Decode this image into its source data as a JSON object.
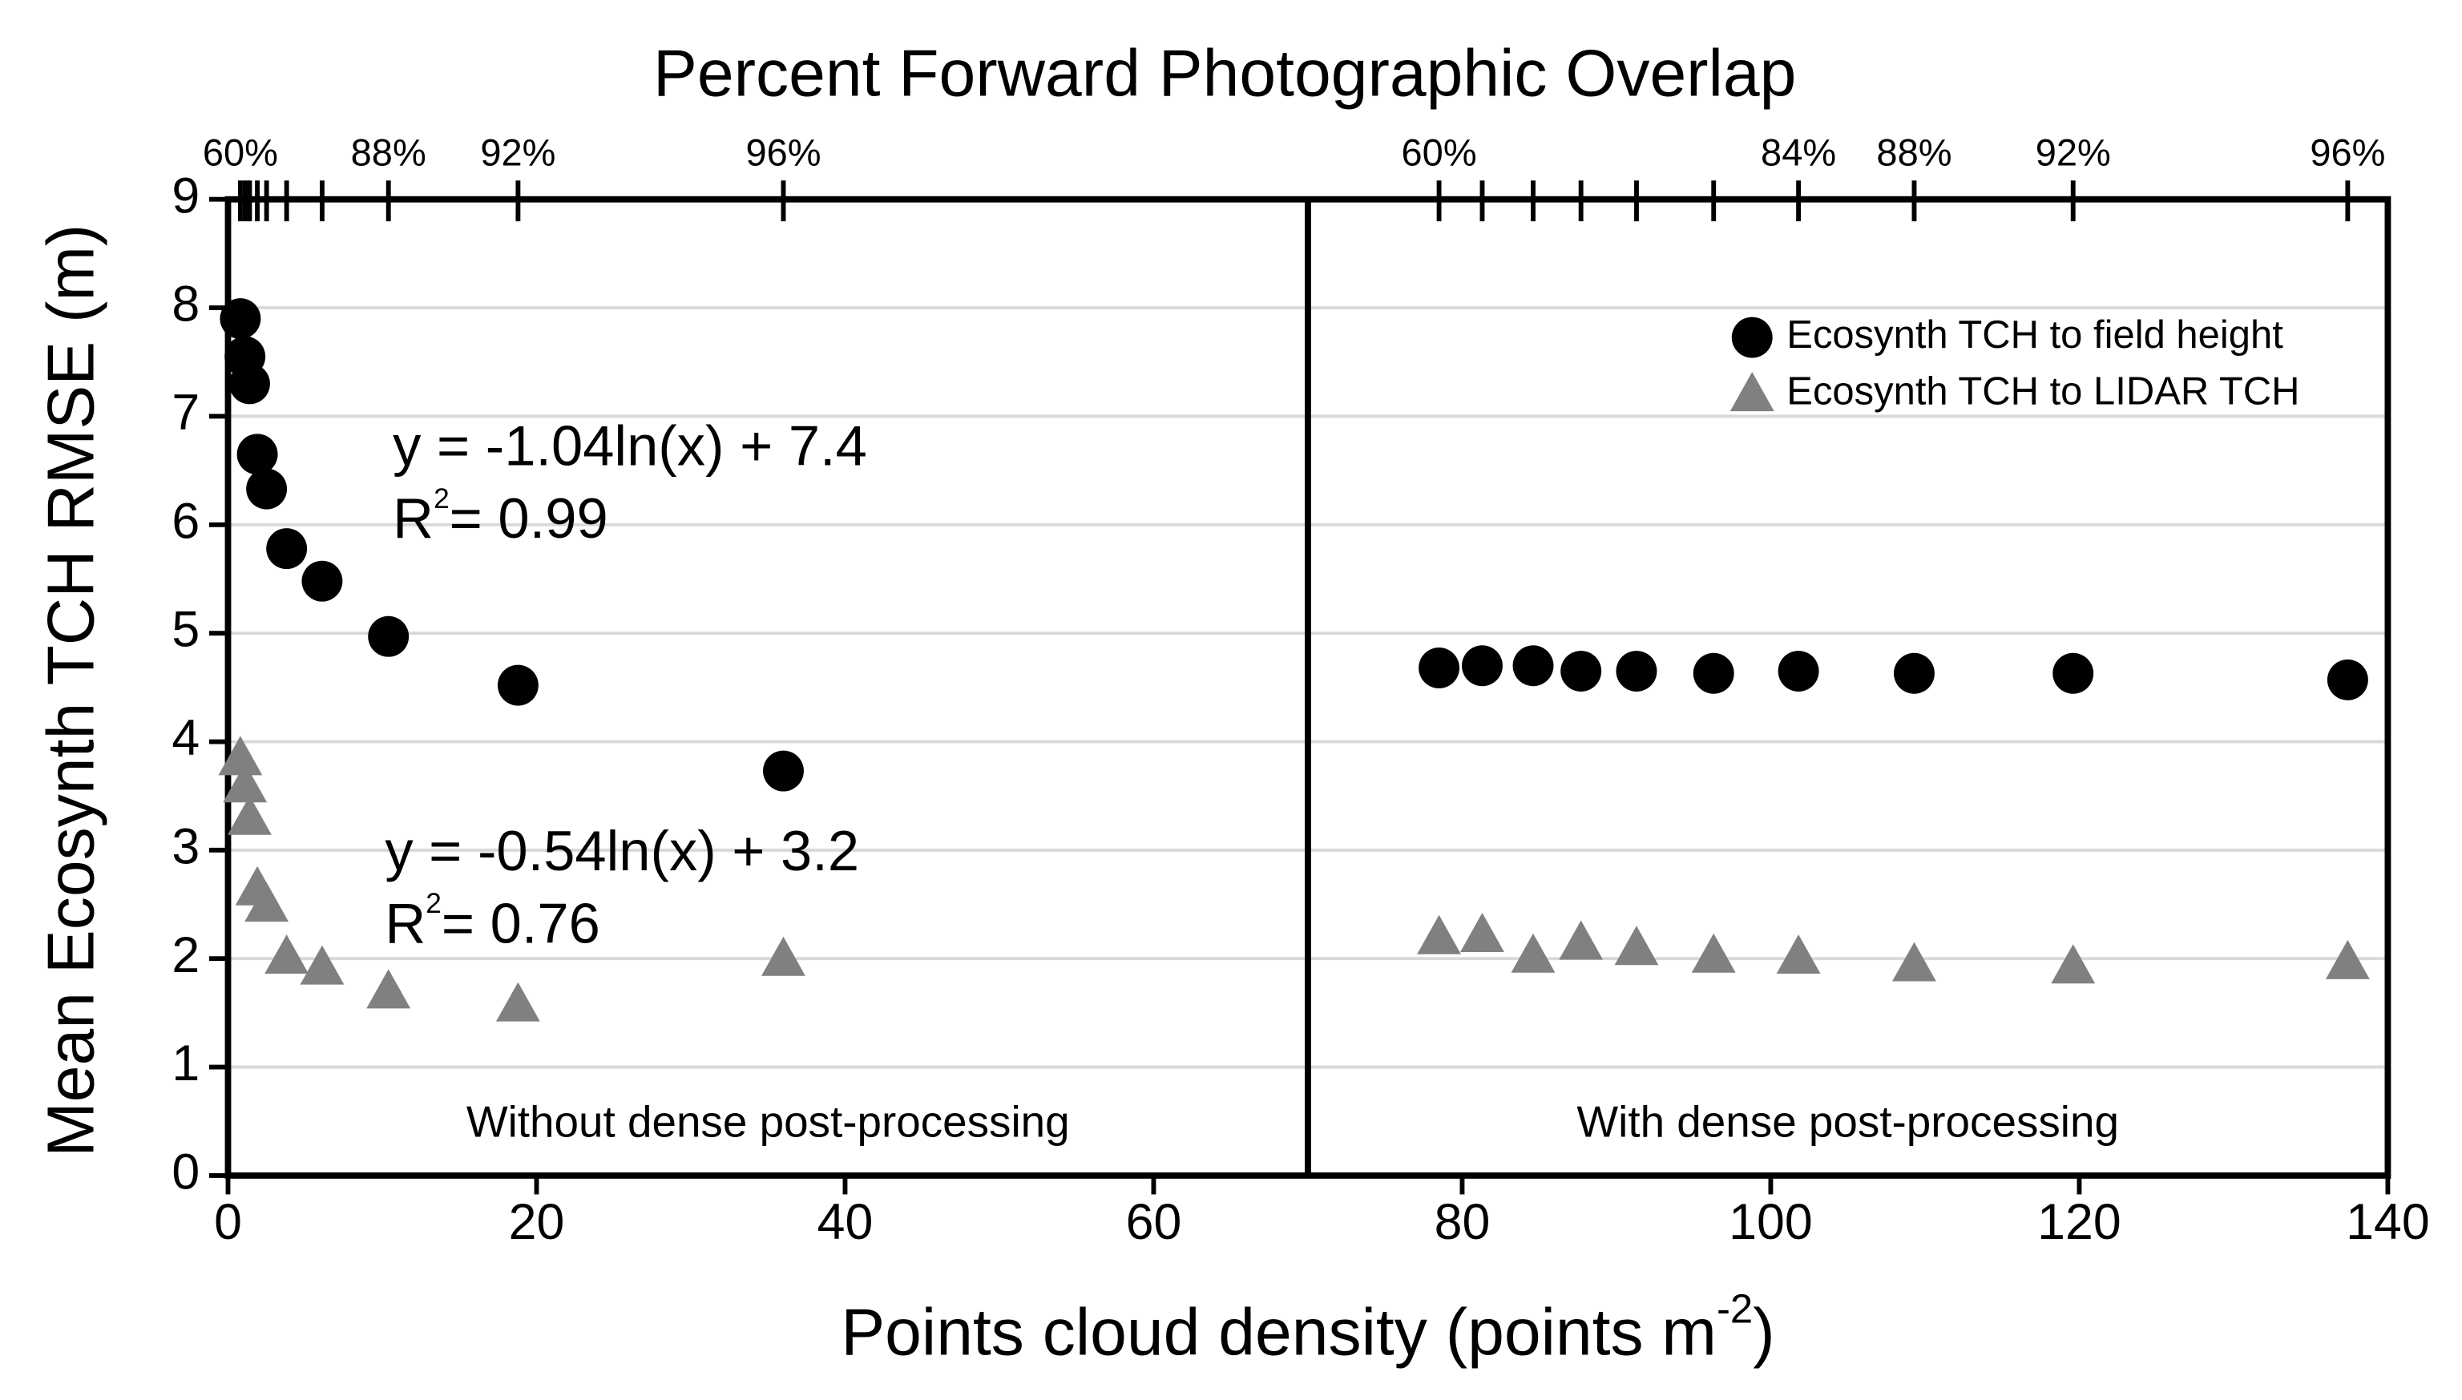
{
  "chart_data": {
    "type": "scatter",
    "title": "Percent Forward Photographic Overlap",
    "x_label": [
      "Points cloud density (points m",
      "-2",
      ")"
    ],
    "y_label": "Mean Ecosynth TCH RMSE (m)",
    "xlim": [
      0,
      140
    ],
    "ylim": [
      0,
      9
    ],
    "xticks": [
      0,
      20,
      40,
      60,
      80,
      100,
      120,
      140
    ],
    "yticks": [
      0,
      1,
      2,
      3,
      4,
      5,
      6,
      7,
      8,
      9
    ],
    "x2ticks": [
      {
        "value": 0.8,
        "label": "60%"
      },
      {
        "value": 10.4,
        "label": "88%"
      },
      {
        "value": 18.8,
        "label": "92%"
      },
      {
        "value": 36,
        "label": "96%"
      },
      {
        "value": 78.5,
        "label": "60%"
      },
      {
        "value": 101.8,
        "label": "84%"
      },
      {
        "value": 109.3,
        "label": "88%"
      },
      {
        "value": 119.6,
        "label": "92%"
      },
      {
        "value": 137.4,
        "label": "96%"
      }
    ],
    "x2minor_ticks": [
      1.1,
      1.4,
      1.9,
      2.5,
      3.8,
      6.1,
      81.3,
      84.6,
      87.7,
      91.3,
      96.3
    ],
    "panel_divider": 70,
    "grid": true,
    "legend": "upper right",
    "series": [
      {
        "name": "Ecosynth TCH to field height",
        "color": "#000000",
        "marker": "circle",
        "x": [
          0.8,
          1.1,
          1.4,
          1.9,
          2.5,
          3.8,
          6.1,
          10.4,
          18.8,
          36,
          78.5,
          81.3,
          84.6,
          87.7,
          91.3,
          96.3,
          101.8,
          109.3,
          119.6,
          137.4
        ],
        "y": [
          7.9,
          7.55,
          7.3,
          6.65,
          6.33,
          5.78,
          5.48,
          4.97,
          4.52,
          3.73,
          4.68,
          4.7,
          4.7,
          4.65,
          4.65,
          4.63,
          4.65,
          4.63,
          4.63,
          4.57
        ]
      },
      {
        "name": "Ecosynth TCH to LIDAR TCH",
        "color": "#808080",
        "marker": "triangle",
        "x": [
          0.8,
          1.1,
          1.4,
          1.9,
          2.5,
          3.8,
          6.1,
          10.4,
          18.8,
          36,
          78.5,
          81.3,
          84.6,
          87.7,
          91.3,
          96.3,
          101.8,
          109.3,
          119.6,
          137.4
        ],
        "y": [
          3.85,
          3.6,
          3.3,
          2.65,
          2.5,
          2.02,
          1.92,
          1.7,
          1.58,
          2.0,
          2.2,
          2.22,
          2.03,
          2.15,
          2.1,
          2.03,
          2.02,
          1.95,
          1.93,
          1.97
        ]
      }
    ],
    "annotations": [
      {
        "equation": "y = -1.04ln(x) + 7.4",
        "r": "R",
        "sup": "2",
        "r2": "= 0.99"
      },
      {
        "equation": "y = -0.54ln(x) + 3.2",
        "r": "R",
        "sup": "2",
        "r2": "= 0.76"
      }
    ],
    "panel_labels": [
      "Without dense post-processing",
      "With dense post-processing"
    ]
  }
}
